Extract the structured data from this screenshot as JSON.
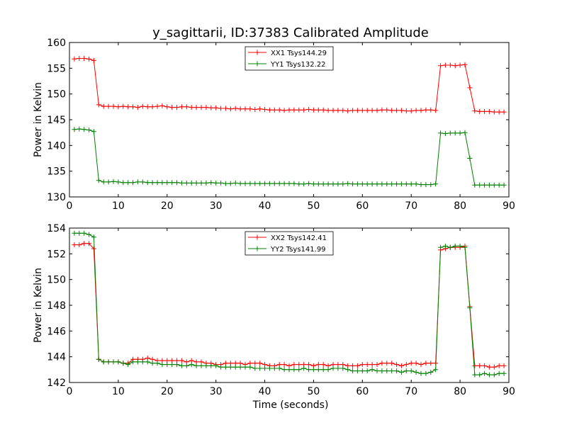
{
  "figure": {
    "title": "y_sagittarii, ID:37383 Calibrated Amplitude",
    "background": "#ffffff"
  },
  "chart_data": [
    {
      "type": "line",
      "title": "y_sagittarii, ID:37383 Calibrated Amplitude",
      "xlabel": "",
      "ylabel": "Power in Kelvin",
      "xlim": [
        0,
        90
      ],
      "ylim": [
        130,
        160
      ],
      "xticks": [
        0,
        10,
        20,
        30,
        40,
        50,
        60,
        70,
        80,
        90
      ],
      "yticks": [
        130,
        135,
        140,
        145,
        150,
        155,
        160
      ],
      "grid": false,
      "legend_position": "top-center",
      "marker": "+",
      "x": [
        1,
        2,
        3,
        4,
        5,
        6,
        7,
        8,
        9,
        10,
        11,
        12,
        13,
        14,
        15,
        16,
        17,
        18,
        19,
        20,
        21,
        22,
        23,
        24,
        25,
        26,
        27,
        28,
        29,
        30,
        31,
        32,
        33,
        34,
        35,
        36,
        37,
        38,
        39,
        40,
        41,
        42,
        43,
        44,
        45,
        46,
        47,
        48,
        49,
        50,
        51,
        52,
        53,
        54,
        55,
        56,
        57,
        58,
        59,
        60,
        61,
        62,
        63,
        64,
        65,
        66,
        67,
        68,
        69,
        70,
        71,
        72,
        73,
        74,
        75,
        76,
        77,
        78,
        79,
        80,
        81,
        82,
        83,
        84,
        85,
        86,
        87,
        88,
        89
      ],
      "series": [
        {
          "name": "XX1 Tsys144.29",
          "color": "#ff0000",
          "values": [
            156.8,
            156.9,
            156.9,
            156.8,
            156.5,
            147.9,
            147.6,
            147.6,
            147.6,
            147.5,
            147.6,
            147.5,
            147.5,
            147.4,
            147.6,
            147.5,
            147.5,
            147.6,
            147.7,
            147.5,
            147.4,
            147.4,
            147.5,
            147.5,
            147.4,
            147.4,
            147.4,
            147.4,
            147.3,
            147.3,
            147.2,
            147.2,
            147.1,
            147.2,
            147.1,
            147.1,
            147.1,
            147.0,
            147.1,
            147.0,
            146.9,
            146.9,
            146.9,
            146.8,
            146.9,
            146.9,
            146.9,
            146.9,
            147.0,
            146.9,
            146.9,
            146.9,
            146.8,
            146.8,
            146.8,
            146.8,
            146.7,
            146.8,
            146.8,
            146.8,
            146.8,
            146.8,
            146.8,
            146.9,
            146.9,
            146.8,
            146.8,
            146.8,
            146.7,
            146.7,
            146.8,
            146.8,
            146.9,
            146.9,
            146.8,
            155.5,
            155.6,
            155.6,
            155.5,
            155.6,
            155.7,
            151.2,
            146.7,
            146.6,
            146.6,
            146.6,
            146.5,
            146.5,
            146.5
          ]
        },
        {
          "name": "YY1 Tsys132.22",
          "color": "#008000",
          "values": [
            143.1,
            143.2,
            143.1,
            143.0,
            142.7,
            133.2,
            132.9,
            132.9,
            133.0,
            132.9,
            132.8,
            132.8,
            132.8,
            132.9,
            132.9,
            132.8,
            132.8,
            132.8,
            132.8,
            132.8,
            132.8,
            132.8,
            132.7,
            132.7,
            132.7,
            132.7,
            132.7,
            132.7,
            132.8,
            132.7,
            132.7,
            132.6,
            132.6,
            132.7,
            132.6,
            132.6,
            132.6,
            132.6,
            132.6,
            132.6,
            132.6,
            132.6,
            132.6,
            132.6,
            132.6,
            132.6,
            132.5,
            132.5,
            132.6,
            132.5,
            132.5,
            132.5,
            132.5,
            132.5,
            132.5,
            132.5,
            132.6,
            132.5,
            132.5,
            132.5,
            132.5,
            132.5,
            132.5,
            132.5,
            132.5,
            132.5,
            132.5,
            132.5,
            132.5,
            132.5,
            132.5,
            132.4,
            132.4,
            132.4,
            132.5,
            142.4,
            142.3,
            142.4,
            142.4,
            142.4,
            142.5,
            137.5,
            132.3,
            132.3,
            132.3,
            132.3,
            132.3,
            132.3,
            132.3
          ]
        }
      ]
    },
    {
      "type": "line",
      "title": "",
      "xlabel": "Time (seconds)",
      "ylabel": "Power in Kelvin",
      "xlim": [
        0,
        90
      ],
      "ylim": [
        142,
        154
      ],
      "xticks": [
        0,
        10,
        20,
        30,
        40,
        50,
        60,
        70,
        80,
        90
      ],
      "yticks": [
        142,
        144,
        146,
        148,
        150,
        152,
        154
      ],
      "grid": false,
      "legend_position": "top-center",
      "marker": "+",
      "x": [
        1,
        2,
        3,
        4,
        5,
        6,
        7,
        8,
        9,
        10,
        11,
        12,
        13,
        14,
        15,
        16,
        17,
        18,
        19,
        20,
        21,
        22,
        23,
        24,
        25,
        26,
        27,
        28,
        29,
        30,
        31,
        32,
        33,
        34,
        35,
        36,
        37,
        38,
        39,
        40,
        41,
        42,
        43,
        44,
        45,
        46,
        47,
        48,
        49,
        50,
        51,
        52,
        53,
        54,
        55,
        56,
        57,
        58,
        59,
        60,
        61,
        62,
        63,
        64,
        65,
        66,
        67,
        68,
        69,
        70,
        71,
        72,
        73,
        74,
        75,
        76,
        77,
        78,
        79,
        80,
        81,
        82,
        83,
        84,
        85,
        86,
        87,
        88,
        89
      ],
      "series": [
        {
          "name": "XX2 Tsys142.41",
          "color": "#ff0000",
          "values": [
            152.7,
            152.7,
            152.8,
            152.8,
            152.4,
            143.8,
            143.6,
            143.6,
            143.6,
            143.6,
            143.5,
            143.5,
            143.8,
            143.8,
            143.8,
            143.9,
            143.8,
            143.7,
            143.7,
            143.7,
            143.7,
            143.7,
            143.7,
            143.6,
            143.7,
            143.6,
            143.6,
            143.5,
            143.5,
            143.4,
            143.4,
            143.5,
            143.5,
            143.5,
            143.5,
            143.4,
            143.5,
            143.5,
            143.5,
            143.4,
            143.3,
            143.3,
            143.4,
            143.4,
            143.3,
            143.4,
            143.4,
            143.4,
            143.4,
            143.3,
            143.4,
            143.4,
            143.3,
            143.4,
            143.4,
            143.4,
            143.3,
            143.3,
            143.3,
            143.4,
            143.4,
            143.4,
            143.4,
            143.5,
            143.5,
            143.5,
            143.4,
            143.3,
            143.4,
            143.5,
            143.5,
            143.4,
            143.5,
            143.5,
            143.5,
            152.3,
            152.4,
            152.5,
            152.5,
            152.5,
            152.6,
            147.9,
            143.3,
            143.3,
            143.3,
            143.2,
            143.2,
            143.3,
            143.3
          ]
        },
        {
          "name": "YY2 Tsys141.99",
          "color": "#008000",
          "values": [
            153.6,
            153.6,
            153.6,
            153.5,
            153.3,
            143.8,
            143.6,
            143.6,
            143.6,
            143.6,
            143.5,
            143.4,
            143.6,
            143.6,
            143.6,
            143.6,
            143.5,
            143.5,
            143.4,
            143.4,
            143.4,
            143.4,
            143.3,
            143.3,
            143.4,
            143.3,
            143.3,
            143.3,
            143.3,
            143.3,
            143.2,
            143.2,
            143.2,
            143.2,
            143.2,
            143.2,
            143.2,
            143.1,
            143.1,
            143.1,
            143.1,
            143.1,
            143.1,
            143.0,
            143.0,
            143.0,
            143.0,
            143.1,
            143.0,
            143.0,
            143.0,
            143.0,
            143.0,
            143.1,
            143.1,
            143.1,
            143.0,
            142.9,
            142.9,
            142.9,
            142.9,
            143.0,
            142.9,
            142.9,
            142.9,
            142.9,
            142.9,
            142.8,
            142.9,
            142.9,
            142.8,
            142.7,
            142.7,
            142.8,
            143.0,
            152.5,
            152.6,
            152.5,
            152.6,
            152.6,
            152.5,
            147.8,
            142.6,
            142.6,
            142.7,
            142.6,
            142.6,
            142.7,
            142.7
          ]
        }
      ]
    }
  ]
}
